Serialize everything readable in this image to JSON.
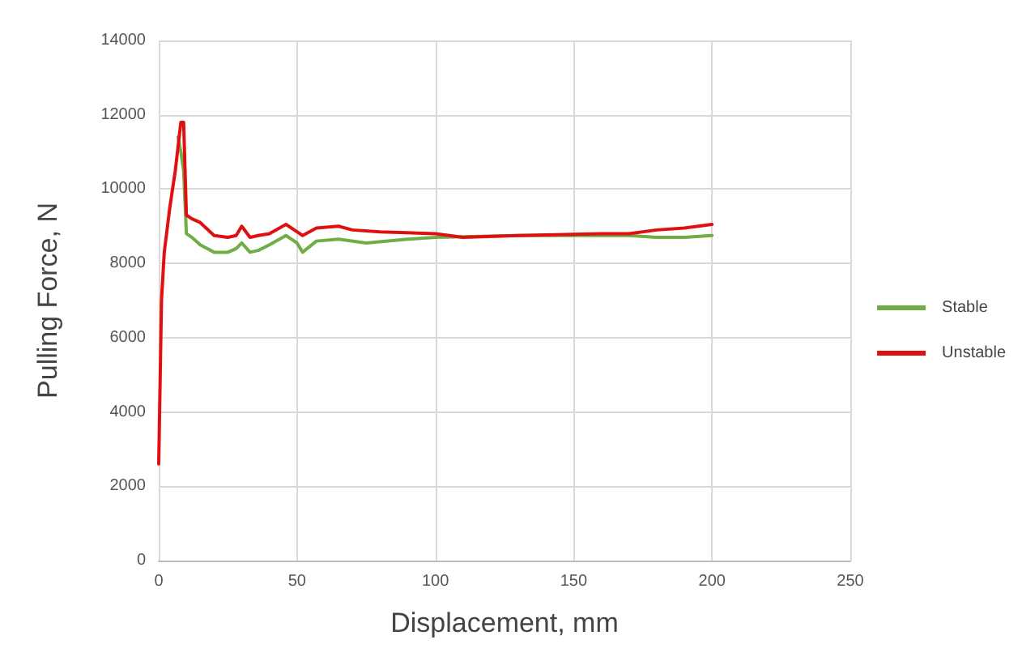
{
  "chart_data": {
    "type": "line",
    "xlabel": "Displacement, mm",
    "ylabel": "Pulling Force, N",
    "xlim": [
      0,
      250
    ],
    "xticks": [
      0,
      50,
      100,
      150,
      200,
      250
    ],
    "ylim": [
      0,
      14000
    ],
    "yticks": [
      0,
      2000,
      4000,
      6000,
      8000,
      10000,
      12000,
      14000
    ],
    "grid": true,
    "legend": "right",
    "marker": "none",
    "line_style": "solid",
    "series": [
      {
        "name": "Stable",
        "color": "#70ad47",
        "x": [
          7,
          8,
          9,
          10,
          12,
          15,
          20,
          25,
          28,
          30,
          33,
          36,
          40,
          46,
          50,
          52,
          57,
          65,
          75,
          90,
          100,
          130,
          160,
          170,
          180,
          190,
          200
        ],
        "values": [
          11400,
          11000,
          10500,
          8800,
          8700,
          8500,
          8300,
          8300,
          8400,
          8550,
          8300,
          8350,
          8500,
          8750,
          8550,
          8300,
          8600,
          8650,
          8550,
          8650,
          8700,
          8750,
          8750,
          8750,
          8700,
          8700,
          8750
        ]
      },
      {
        "name": "Unstable",
        "color": "#e01010",
        "x": [
          0,
          1,
          2,
          4,
          6,
          8,
          9,
          10,
          12,
          15,
          20,
          25,
          28,
          30,
          33,
          36,
          40,
          46,
          50,
          52,
          57,
          65,
          70,
          80,
          100,
          110,
          130,
          160,
          170,
          180,
          190,
          200
        ],
        "values": [
          2600,
          7000,
          8300,
          9500,
          10500,
          11800,
          11800,
          9300,
          9200,
          9100,
          8750,
          8700,
          8750,
          9000,
          8700,
          8750,
          8800,
          9050,
          8850,
          8750,
          8950,
          9000,
          8900,
          8850,
          8800,
          8700,
          8750,
          8800,
          8800,
          8900,
          8950,
          9050
        ]
      }
    ]
  }
}
